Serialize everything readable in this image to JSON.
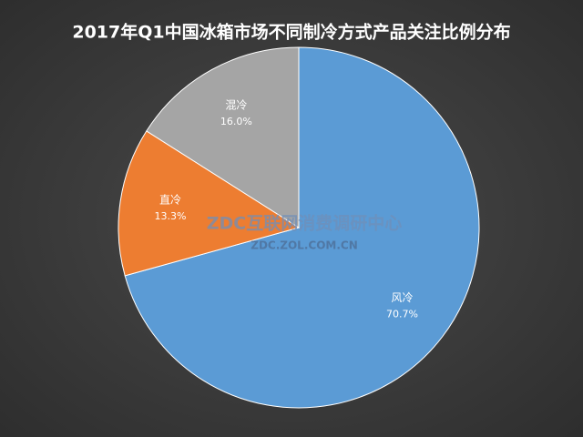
{
  "chart_data": {
    "type": "pie",
    "title": "2017年Q1中国冰箱市场不同制冷方式产品关注比例分布",
    "categories": [
      "风冷",
      "直冷",
      "混冷"
    ],
    "values": [
      70.7,
      13.3,
      16.0
    ],
    "value_labels": [
      "70.7%",
      "13.3%",
      "16.0%"
    ],
    "colors": [
      "#5b9bd5",
      "#ed7d31",
      "#a5a5a5"
    ],
    "watermark": [
      "ZDC互联网消费调研中心",
      "ZDC.ZOL.COM.CN"
    ]
  }
}
